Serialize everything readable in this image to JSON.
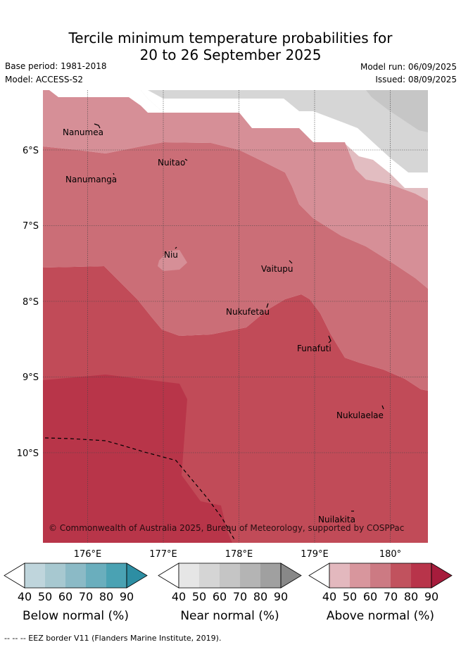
{
  "title_line1": "Tercile minimum temperature probabilities for",
  "title_line2": "20 to 26 September 2025",
  "base_period": "Base period: 1981-2018",
  "model": "Model: ACCESS-S2",
  "model_run": "Model run: 06/09/2025",
  "issued": "Issued: 08/09/2025",
  "lat_ticks": [
    "6°S",
    "7°S",
    "8°S",
    "9°S",
    "10°S"
  ],
  "lon_ticks": [
    "176°E",
    "177°E",
    "178°E",
    "179°E",
    "180°"
  ],
  "places": [
    "Nanumea",
    "Nuitao",
    "Nanumanga",
    "Niu",
    "Vaitupu",
    "Nukufetau",
    "Funafuti",
    "Nukulaelae",
    "Nuilakita"
  ],
  "copyright": "© Commonwealth of Australia 2025, Bureau of Meteorology, supported by COSPPac",
  "colorbars": [
    {
      "label": "Below normal (%)",
      "ticks": [
        "40",
        "50",
        "60",
        "70",
        "80",
        "90"
      ],
      "colors": [
        "#bfd5dc",
        "#a7c8d0",
        "#8bbac6",
        "#6aaebd",
        "#4aa2b3",
        "#2d8ea3"
      ]
    },
    {
      "label": "Near normal (%)",
      "ticks": [
        "40",
        "50",
        "60",
        "70",
        "80",
        "90"
      ],
      "colors": [
        "#e6e6e6",
        "#d5d5d5",
        "#c5c5c5",
        "#b4b4b4",
        "#a0a0a0",
        "#888888"
      ]
    },
    {
      "label": "Above normal (%)",
      "ticks": [
        "40",
        "50",
        "60",
        "70",
        "80",
        "90"
      ],
      "colors": [
        "#e3b8be",
        "#d8969d",
        "#cc7a83",
        "#c1525e",
        "#b8344a",
        "#a61c3c"
      ]
    }
  ],
  "footer": "-- -- -- EEZ border V11 (Flanders Marine Institute, 2019).",
  "colors": {
    "near_light": "#d6d6d6",
    "near_mid": "#c6c6c6",
    "above_pale": "#e2bdc1",
    "above_40": "#d68f97",
    "above_50": "#cb6e77",
    "above_60": "#c14b58",
    "above_70": "#b83549"
  }
}
